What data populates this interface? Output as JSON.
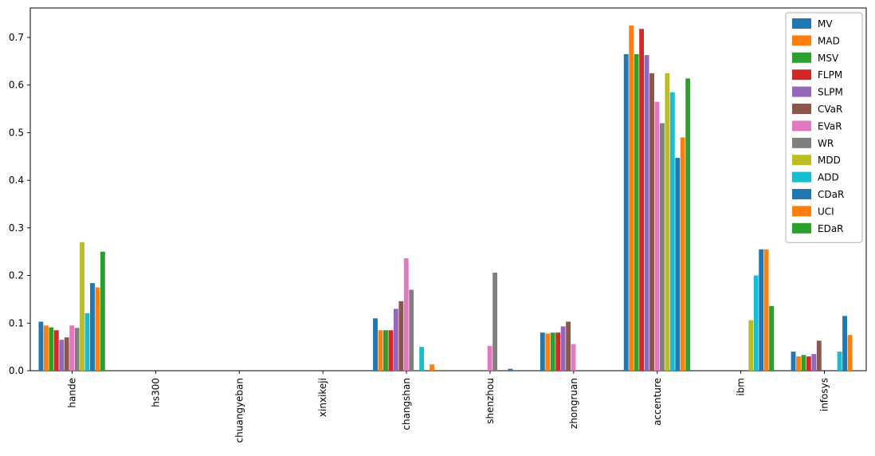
{
  "figure": {
    "background": "#ffffff",
    "axes_edge_color": "#000000"
  },
  "chart_data": {
    "type": "bar",
    "title": "",
    "xlabel": "",
    "ylabel": "",
    "grid": false,
    "legend_position": "upper right",
    "ylim": [
      0,
      0.762
    ],
    "yticks": [
      0.0,
      0.1,
      0.2,
      0.3,
      0.4,
      0.5,
      0.6,
      0.7
    ],
    "categories": [
      "hande",
      "hs300",
      "chuangyeban",
      "xinxikeji",
      "changshan",
      "shenzhou",
      "zhongruan",
      "accenture",
      "ibm",
      "infosys"
    ],
    "series": [
      {
        "name": "MV",
        "color": "#1f77b4",
        "values": [
          0.103,
          0,
          0,
          0,
          0.11,
          0,
          0.08,
          0.665,
          0,
          0.04
        ]
      },
      {
        "name": "MAD",
        "color": "#ff7f0e",
        "values": [
          0.095,
          0,
          0,
          0,
          0.085,
          0,
          0.078,
          0.725,
          0,
          0.03
        ]
      },
      {
        "name": "MSV",
        "color": "#2ca02c",
        "values": [
          0.091,
          0,
          0,
          0,
          0.085,
          0,
          0.08,
          0.665,
          0,
          0.033
        ]
      },
      {
        "name": "FLPM",
        "color": "#d62728",
        "values": [
          0.085,
          0,
          0,
          0,
          0.085,
          0,
          0.08,
          0.718,
          0,
          0.03
        ]
      },
      {
        "name": "SLPM",
        "color": "#9467bd",
        "values": [
          0.065,
          0,
          0,
          0,
          0.13,
          0,
          0.093,
          0.663,
          0,
          0.035
        ]
      },
      {
        "name": "CVaR",
        "color": "#8c564b",
        "values": [
          0.07,
          0,
          0,
          0,
          0.146,
          0,
          0.103,
          0.625,
          0,
          0.063
        ]
      },
      {
        "name": "EVaR",
        "color": "#e377c2",
        "values": [
          0.095,
          0,
          0,
          0,
          0.236,
          0.052,
          0.056,
          0.565,
          0,
          0
        ]
      },
      {
        "name": "WR",
        "color": "#7f7f7f",
        "values": [
          0.09,
          0,
          0,
          0,
          0.17,
          0.206,
          0,
          0.52,
          0,
          0
        ]
      },
      {
        "name": "MDD",
        "color": "#bcbd22",
        "values": [
          0.27,
          0,
          0,
          0,
          0,
          0,
          0,
          0.625,
          0.106,
          0
        ]
      },
      {
        "name": "ADD",
        "color": "#17becf",
        "values": [
          0.121,
          0,
          0,
          0,
          0.05,
          0,
          0,
          0.585,
          0.2,
          0.04
        ]
      },
      {
        "name": "CDaR",
        "color": "#1f77b4",
        "values": [
          0.184,
          0,
          0,
          0,
          0,
          0.004,
          0,
          0.447,
          0.255,
          0.115
        ]
      },
      {
        "name": "UCI",
        "color": "#ff7f0e",
        "values": [
          0.175,
          0,
          0,
          0,
          0.013,
          0,
          0,
          0.49,
          0.255,
          0.075
        ]
      },
      {
        "name": "EDaR",
        "color": "#2ca02c",
        "values": [
          0.25,
          0,
          0,
          0,
          0,
          0,
          0,
          0.614,
          0.136,
          0
        ]
      }
    ]
  }
}
